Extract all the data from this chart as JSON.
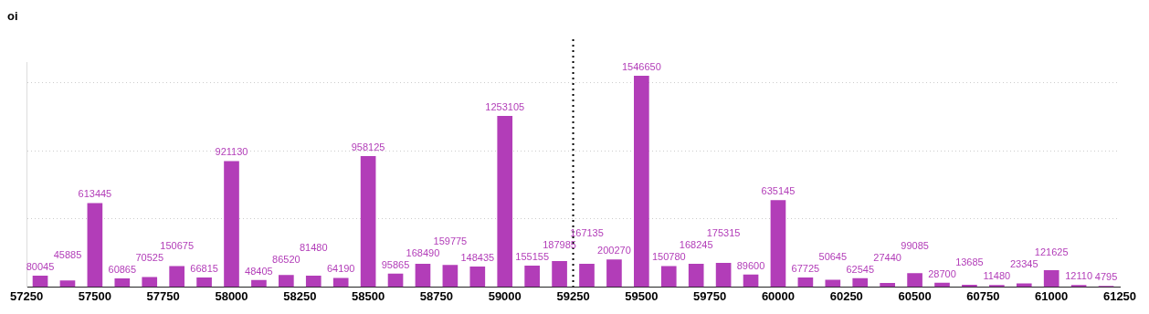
{
  "chart_data": {
    "type": "bar",
    "ylabel": "oi",
    "x": [
      57300,
      57400,
      57500,
      57600,
      57700,
      57800,
      57900,
      58000,
      58100,
      58200,
      58300,
      58400,
      58500,
      58600,
      58700,
      58800,
      58900,
      59000,
      59100,
      59200,
      59300,
      59400,
      59500,
      59600,
      59700,
      59800,
      59900,
      60000,
      60100,
      60200,
      60300,
      60400,
      60500,
      60600,
      60700,
      60800,
      60900,
      61000,
      61100,
      61200
    ],
    "values": [
      80045,
      45885,
      613445,
      60865,
      70525,
      150675,
      66815,
      921130,
      48405,
      86520,
      81480,
      64190,
      958125,
      95865,
      168490,
      159775,
      148435,
      1253105,
      155155,
      187985,
      167135,
      200270,
      1546650,
      150780,
      168245,
      175315,
      89600,
      635145,
      67725,
      50645,
      62545,
      27440,
      99085,
      28700,
      13685,
      11480,
      23345,
      121625,
      12110,
      4795
    ],
    "color": "#b23db8",
    "xlim": [
      57250,
      61250
    ],
    "xticks": [
      57250,
      57500,
      57750,
      58000,
      58250,
      58500,
      58750,
      59000,
      59250,
      59500,
      59750,
      60000,
      60250,
      60500,
      60750,
      61000,
      61250
    ],
    "ylim": [
      0,
      1650000
    ],
    "yticks": [
      {
        "value": 0,
        "label": null
      },
      {
        "value": 500000,
        "label": null
      },
      {
        "value": 1000000,
        "label": null
      },
      {
        "value": 1500000,
        "label": null
      }
    ],
    "grid": "y",
    "ref_lines": [
      {
        "axis": "x",
        "value": 59250,
        "line_style": "dotted",
        "color": "#000000"
      }
    ],
    "data_labels": true,
    "legend": false
  }
}
